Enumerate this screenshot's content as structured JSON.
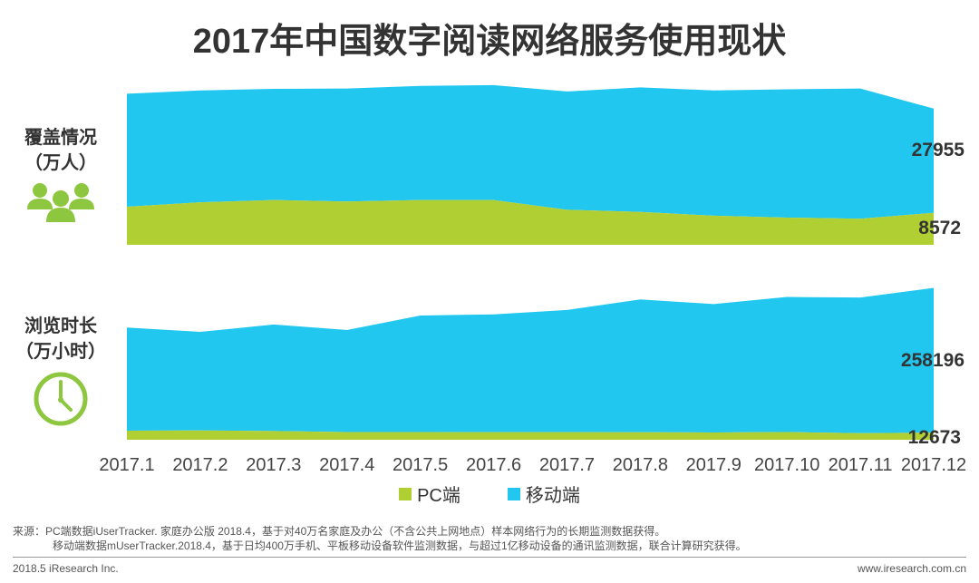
{
  "title": "2017年中国数字阅读网络服务使用现状",
  "panels": [
    {
      "label_line1": "覆盖情况",
      "label_line2": "（万人）",
      "icon": "people-icon"
    },
    {
      "label_line1": "浏览时长",
      "label_line2": "（万小时）",
      "icon": "clock-icon"
    }
  ],
  "colors": {
    "pc": "#b0cf33",
    "mobile": "#22c7f0",
    "icon": "#8dc63f"
  },
  "chart_data": [
    {
      "type": "area",
      "stacked": true,
      "categories": [
        "2017.1",
        "2017.2",
        "2017.3",
        "2017.4",
        "2017.5",
        "2017.6",
        "2017.7",
        "2017.8",
        "2017.9",
        "2017.10",
        "2017.11",
        "2017.12"
      ],
      "series": [
        {
          "name": "PC端",
          "values": [
            10200,
            11400,
            12000,
            11600,
            12000,
            12000,
            9400,
            8800,
            7800,
            7300,
            7000,
            8572
          ]
        },
        {
          "name": "移动端",
          "values": [
            30300,
            30000,
            29800,
            30300,
            30600,
            30800,
            31700,
            33400,
            33600,
            34400,
            34900,
            27955
          ]
        }
      ],
      "last_labels": {
        "mobile": "27955",
        "pc": "8572"
      }
    },
    {
      "type": "area",
      "stacked": true,
      "categories": [
        "2017.1",
        "2017.2",
        "2017.3",
        "2017.4",
        "2017.5",
        "2017.6",
        "2017.7",
        "2017.8",
        "2017.9",
        "2017.10",
        "2017.11",
        "2017.12"
      ],
      "series": [
        {
          "name": "PC端",
          "values": [
            16200,
            16500,
            15600,
            13800,
            13700,
            13600,
            13500,
            13300,
            13000,
            13700,
            11800,
            12673
          ]
        },
        {
          "name": "移动端",
          "values": [
            184000,
            176000,
            190000,
            182000,
            208000,
            210000,
            218000,
            237000,
            229000,
            241000,
            242000,
            258196
          ]
        }
      ],
      "last_labels": {
        "mobile": "258196",
        "pc": "12673"
      }
    }
  ],
  "legend": [
    {
      "name": "PC端",
      "color": "#b0cf33"
    },
    {
      "name": "移动端",
      "color": "#22c7f0"
    }
  ],
  "source_line1": "来源：PC端数据iUserTracker. 家庭办公版 2018.4，基于对40万名家庭及办公（不含公共上网地点）样本网络行为的长期监测数据获得。",
  "source_line2": "移动端数据mUserTracker.2018.4，基于日均400万手机、平板移动设备软件监测数据，与超过1亿移动设备的通讯监测数据，联合计算研究获得。",
  "footer_left": "2018.5 iResearch Inc.",
  "footer_right": "www.iresearch.com.cn"
}
